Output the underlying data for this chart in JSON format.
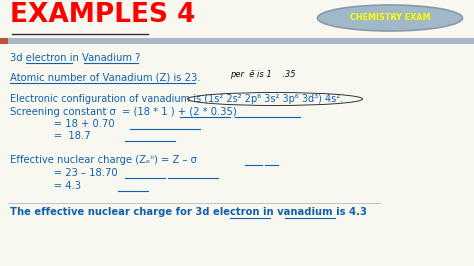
{
  "title": "EXAMPLES 4",
  "title_color": "#FF0000",
  "title_fontsize": 18,
  "badge_text": "CHEMISTRY EXAM",
  "badge_text_color": "#FFFF00",
  "badge_bg_color": "#A0B8C8",
  "badge_edge_color": "#8899AA",
  "bg_color": "#F8F8F0",
  "header_bar_color": "#A8B8C8",
  "accent_bar_color": "#BB5533",
  "main_color": "#1060B0",
  "line1": "3d electron in Vanadium ?",
  "line2": "Atomic number of Vanadium (Z) is 23.",
  "line3a": "Electronic configuration of vanadium is (1s² 2s² 2p⁶ 3s² 3p⁶ 3d³) 4s².",
  "line3b": "Screening constant σ  = (18 * 1 ) + (2 * 0.35)",
  "line3c": "              = 18 + 0.70",
  "line3d": "              =  18.7",
  "line4a": "Effective nuclear charge (Zₑⁱⁱ) = Z – σ",
  "line4b": "              = 23 – 18.70",
  "line4c": "              = 4.3",
  "line5": "The effective nuclear charge for 3d electron in vanadium is 4.3",
  "fs_main": 7.2,
  "fs_title": 19
}
